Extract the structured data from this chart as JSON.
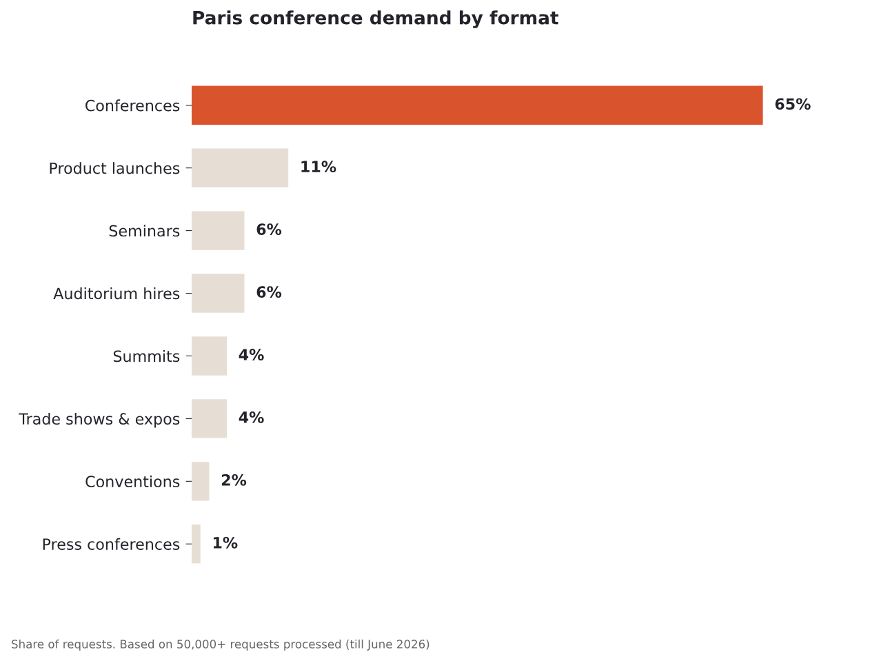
{
  "chart_data": {
    "type": "bar",
    "orientation": "horizontal",
    "title": "Paris conference demand by format",
    "categories": [
      "Conferences",
      "Product launches",
      "Seminars",
      "Auditorium hires",
      "Summits",
      "Trade shows & expos",
      "Conventions",
      "Press conferences"
    ],
    "values": [
      65,
      11,
      6,
      6,
      4,
      4,
      2,
      1
    ],
    "colors": [
      "#d9532c",
      "#e6ded4",
      "#e6ded4",
      "#e6ded4",
      "#e6ded4",
      "#e6ded4",
      "#e6ded4",
      "#e6ded4"
    ],
    "value_labels": [
      "65%",
      "11%",
      "6%",
      "6%",
      "4%",
      "4%",
      "2%",
      "1%"
    ],
    "grid": false,
    "legend": false,
    "annotations": [
      "Share of requests. Based on 50,000+ requests processed (till June 2026)"
    ]
  }
}
